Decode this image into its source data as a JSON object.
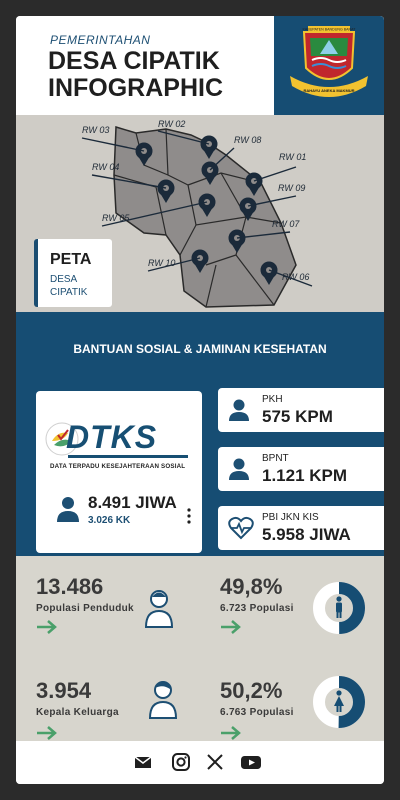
{
  "header": {
    "subtitle": "PEMERINTAHAN",
    "title_line1": "DESA CIPATIK",
    "title_line2": "INFOGRAPHIC",
    "logo_top_text": "KABUPATEN BANDUNG BARAT",
    "logo_bottom_text": "RAHAYU ANEKA MAKMUR"
  },
  "map": {
    "label_title": "PETA",
    "label_sub1": "DESA",
    "label_sub2": "CIPATIK",
    "rw_labels": [
      "RW 01",
      "RW 02",
      "RW 03",
      "RW 04",
      "RW 05",
      "RW 06",
      "RW 07",
      "RW 08",
      "RW 09",
      "RW 10"
    ]
  },
  "bansos": {
    "title": "BANTUAN SOSIAL & JAMINAN KESEHATAN",
    "dtks_logo_text": "DTKS",
    "dtks_desc": "DATA TERPADU KESEJAHTERAAN SOSIAL",
    "dtks_value": "8.491 JIWA",
    "dtks_kk": "3.026 KK",
    "stats": [
      {
        "label": "PKH",
        "value": "575 KPM",
        "icon": "person-icon"
      },
      {
        "label": "BPNT",
        "value": "1.121 KPM",
        "icon": "person-icon"
      },
      {
        "label": "PBI JKN KIS",
        "value": "5.958 JIWA",
        "icon": "heart-pulse-icon"
      }
    ]
  },
  "population": {
    "total_value": "13.486",
    "total_label": "Populasi Penduduk",
    "kk_value": "3.954",
    "kk_label": "Kepala Keluarga",
    "male_pct": "49,8%",
    "male_count": "6.723 Populasi",
    "male_fraction": 0.498,
    "female_pct": "50,2%",
    "female_count": "6.763 Populasi",
    "female_fraction": 0.502
  },
  "colors": {
    "navy": "#164d73",
    "green": "#4aa06a",
    "panel_grey": "#d7d5cd",
    "map_grey": "#8f8c8b"
  },
  "footer": {
    "icons": [
      "mail-icon",
      "instagram-icon",
      "x-icon",
      "youtube-icon"
    ]
  }
}
